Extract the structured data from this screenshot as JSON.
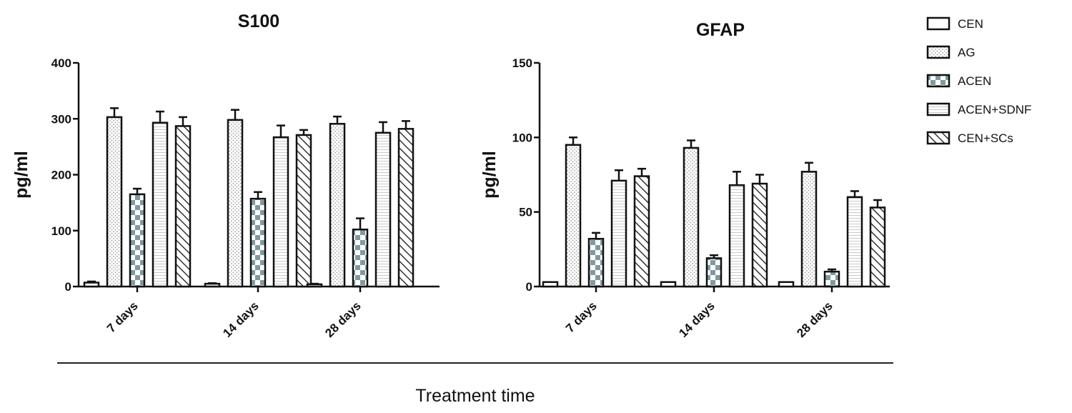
{
  "legend": {
    "position": "right",
    "entries": [
      "CEN",
      "AG",
      "ACEN",
      "ACEN+SDNF",
      "CEN+SCs"
    ]
  },
  "x_axis_label": "Treatment time",
  "chart_data": [
    {
      "type": "bar",
      "title": "S100",
      "ylabel": "pg/ml",
      "xlabel": "",
      "ylim": [
        0,
        400
      ],
      "yticks": [
        0,
        100,
        200,
        300,
        400
      ],
      "grid": false,
      "categories": [
        "7 days",
        "14 days",
        "28 days"
      ],
      "series": [
        {
          "name": "CEN",
          "values": [
            7,
            5,
            4
          ],
          "errors": [
            2,
            1,
            1
          ]
        },
        {
          "name": "AG",
          "values": [
            303,
            298,
            291
          ],
          "errors": [
            16,
            18,
            13
          ]
        },
        {
          "name": "ACEN",
          "values": [
            165,
            157,
            102
          ],
          "errors": [
            10,
            12,
            20
          ]
        },
        {
          "name": "ACEN+SDNF",
          "values": [
            293,
            267,
            275
          ],
          "errors": [
            20,
            21,
            19
          ]
        },
        {
          "name": "CEN+SCs",
          "values": [
            287,
            271,
            282
          ],
          "errors": [
            16,
            9,
            14
          ]
        }
      ]
    },
    {
      "type": "bar",
      "title": "GFAP",
      "ylabel": "pg/ml",
      "xlabel": "",
      "ylim": [
        0,
        150
      ],
      "yticks": [
        0,
        50,
        100,
        150
      ],
      "grid": false,
      "categories": [
        "7 days",
        "14 days",
        "28 days"
      ],
      "series": [
        {
          "name": "CEN",
          "values": [
            3,
            3,
            3
          ],
          "errors": [
            0.5,
            0.5,
            0.5
          ]
        },
        {
          "name": "AG",
          "values": [
            95,
            93,
            77
          ],
          "errors": [
            5,
            5,
            6
          ]
        },
        {
          "name": "ACEN",
          "values": [
            32,
            19,
            10
          ],
          "errors": [
            4,
            2,
            1.5
          ]
        },
        {
          "name": "ACEN+SDNF",
          "values": [
            71,
            68,
            60
          ],
          "errors": [
            7,
            9,
            4
          ]
        },
        {
          "name": "CEN+SCs",
          "values": [
            74,
            69,
            53
          ],
          "errors": [
            5,
            6,
            5
          ]
        }
      ]
    }
  ]
}
